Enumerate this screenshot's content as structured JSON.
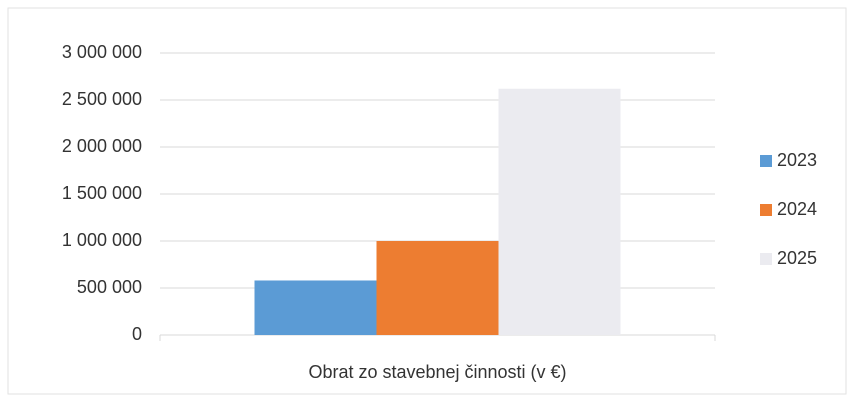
{
  "chart_data": {
    "type": "bar",
    "categories": [
      "Obrat zo stavebnej činnosti (v €)"
    ],
    "series": [
      {
        "name": "2023",
        "color": "#5b9bd5",
        "values": [
          580000
        ]
      },
      {
        "name": "2024",
        "color": "#ed7d31",
        "values": [
          1000000
        ]
      },
      {
        "name": "2025",
        "color": "#ebebf0",
        "values": [
          2620000
        ]
      }
    ],
    "ylim": [
      0,
      3000000
    ],
    "yticks": [
      0,
      {
        "value": 500000,
        "label": "500 000"
      },
      {
        "value": 1000000,
        "label": "1 000 000"
      },
      {
        "value": 1500000,
        "label": "1 500 000"
      },
      {
        "value": 2000000,
        "label": "2 000 000"
      },
      {
        "value": 2500000,
        "label": "2 500 000"
      },
      {
        "value": 3000000,
        "label": "3 000 000"
      }
    ],
    "grid": true,
    "legend": "right"
  }
}
